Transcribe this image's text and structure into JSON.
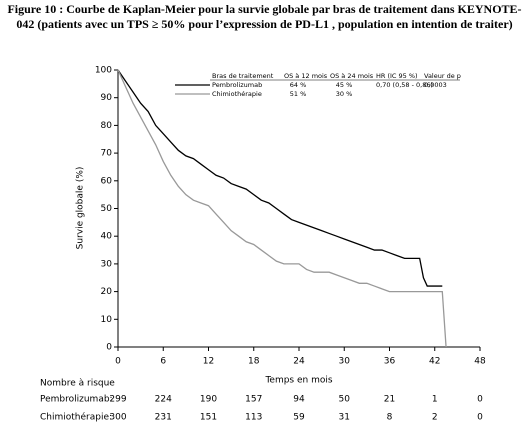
{
  "chart_data": {
    "type": "line",
    "title": "Figure 10 : Courbe de Kaplan-Meier pour la survie globale par bras de traitement dans KEYNOTE-042 (patients avec un TPS ≥ 50% pour l’expression de PD-L1 , population en intention de traiter)",
    "xlabel": "Temps en mois",
    "ylabel": "Survie globale (%)",
    "xlim": [
      0,
      48
    ],
    "xticks": [
      0,
      6,
      12,
      18,
      24,
      30,
      36,
      42,
      48
    ],
    "ylim": [
      0,
      100
    ],
    "yticks": [
      0,
      10,
      20,
      30,
      40,
      50,
      60,
      70,
      80,
      90,
      100
    ],
    "legend_headers": [
      "Bras de traitement",
      "OS à 12 mois",
      "OS à 24 mois",
      "HR (IC 95 %)",
      "Valeur de p"
    ],
    "series": [
      {
        "name": "Pembrolizumab",
        "color": "#000000",
        "table": [
          "64 %",
          "45 %",
          "0,70 (0,58 - 0,86)",
          "0,0003"
        ],
        "x": [
          0,
          1,
          2,
          3,
          4,
          5,
          6,
          7,
          8,
          9,
          10,
          11,
          12,
          13,
          14,
          15,
          16,
          17,
          18,
          19,
          20,
          21,
          22,
          23,
          24,
          25,
          26,
          27,
          28,
          29,
          30,
          31,
          32,
          33,
          34,
          35,
          36,
          37,
          38,
          39,
          40,
          40.5,
          41,
          42,
          43
        ],
        "values": [
          100,
          96,
          92,
          88,
          85,
          80,
          77,
          74,
          71,
          69,
          68,
          66,
          64,
          62,
          61,
          59,
          58,
          57,
          55,
          53,
          52,
          50,
          48,
          46,
          45,
          44,
          43,
          42,
          41,
          40,
          39,
          38,
          37,
          36,
          35,
          35,
          34,
          33,
          32,
          32,
          32,
          25,
          22,
          22,
          22
        ]
      },
      {
        "name": "Chimiothérapie",
        "color": "#999999",
        "table": [
          "51 %",
          "30 %"
        ],
        "x": [
          0,
          1,
          2,
          3,
          4,
          5,
          6,
          7,
          8,
          9,
          10,
          11,
          12,
          13,
          14,
          15,
          16,
          17,
          18,
          19,
          20,
          21,
          22,
          23,
          24,
          25,
          26,
          27,
          28,
          29,
          30,
          31,
          32,
          33,
          34,
          35,
          36,
          37,
          38,
          39,
          40,
          41,
          42,
          43,
          43.5
        ],
        "values": [
          100,
          94,
          88,
          83,
          78,
          73,
          67,
          62,
          58,
          55,
          53,
          52,
          51,
          48,
          45,
          42,
          40,
          38,
          37,
          35,
          33,
          31,
          30,
          30,
          30,
          28,
          27,
          27,
          27,
          26,
          25,
          24,
          23,
          23,
          22,
          21,
          20,
          20,
          20,
          20,
          20,
          20,
          20,
          20,
          0
        ]
      }
    ],
    "at_risk_title": "Nombre à risque",
    "at_risk": [
      {
        "name": "Pembrolizumab:",
        "values": [
          299,
          224,
          190,
          157,
          94,
          50,
          21,
          1,
          0
        ]
      },
      {
        "name": "Chimiothérapie:",
        "values": [
          300,
          231,
          151,
          113,
          59,
          31,
          8,
          2,
          0
        ]
      }
    ]
  }
}
